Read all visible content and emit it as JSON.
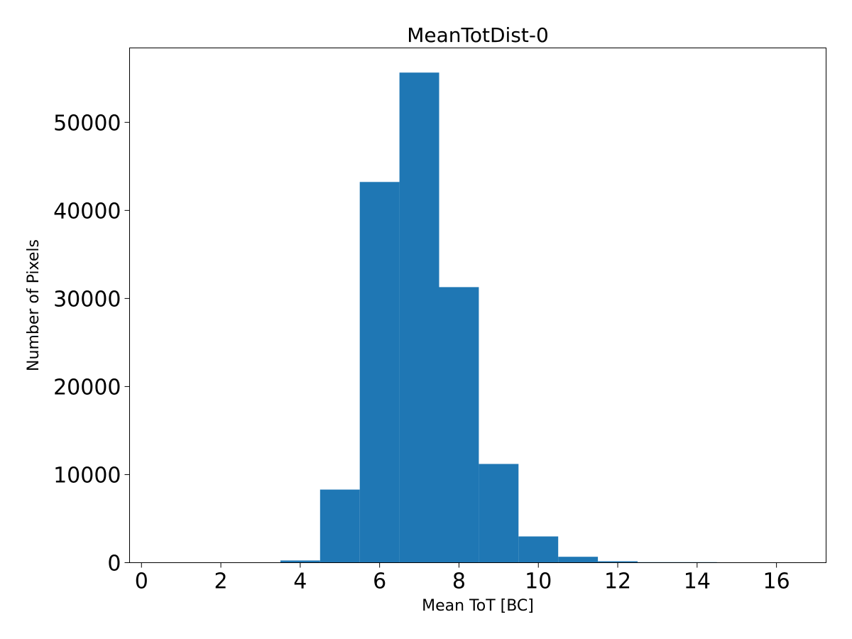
{
  "chart_data": {
    "type": "bar",
    "title": "MeanTotDist-0",
    "xlabel": "Mean ToT [BC]",
    "ylabel": "Number of Pixels",
    "bin_width": 1,
    "bin_centers": [
      1,
      2,
      3,
      4,
      5,
      6,
      7,
      8,
      9,
      10,
      11,
      12,
      13,
      14,
      15,
      16
    ],
    "values": [
      0,
      0,
      0,
      250,
      8300,
      43230,
      55650,
      31290,
      11210,
      2980,
      670,
      160,
      60,
      60,
      0,
      0
    ],
    "xlim": [
      -0.3,
      17.25
    ],
    "ylim": [
      0,
      58450
    ],
    "xticks": [
      0,
      2,
      4,
      6,
      8,
      10,
      12,
      14,
      16
    ],
    "yticks": [
      0,
      10000,
      20000,
      30000,
      40000,
      50000
    ],
    "bar_color": "#1f77b4",
    "grid": false
  }
}
